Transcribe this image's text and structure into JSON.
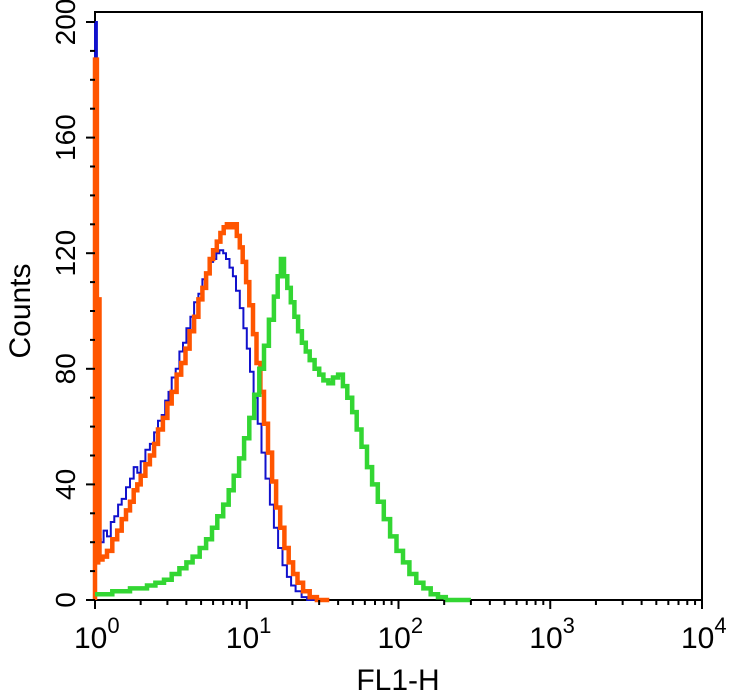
{
  "figure": {
    "background": "#ffffff",
    "axis_color": "#000000"
  },
  "chart_data": {
    "type": "line",
    "subtype": "flow-cytometry-histogram-overlay",
    "title": "",
    "xlabel": "FL1-H",
    "ylabel": "Counts",
    "x_scale": "log10",
    "x_range": [
      1,
      10000
    ],
    "y_range": [
      0,
      200
    ],
    "grid": "off",
    "legend": "none",
    "axis_color": "#000000",
    "x_ticks": [
      {
        "value": 1,
        "base": "10",
        "exp": "0"
      },
      {
        "value": 10,
        "base": "10",
        "exp": "1"
      },
      {
        "value": 100,
        "base": "10",
        "exp": "2"
      },
      {
        "value": 1000,
        "base": "10",
        "exp": "3"
      },
      {
        "value": 10000,
        "base": "10",
        "exp": "4"
      }
    ],
    "x_minor_ticks_per_decade": [
      2,
      3,
      4,
      5,
      6,
      7,
      8,
      9
    ],
    "y_ticks": [
      {
        "value": 0,
        "label": "0"
      },
      {
        "value": 40,
        "label": "40"
      },
      {
        "value": 80,
        "label": "80"
      },
      {
        "value": 120,
        "label": "120"
      },
      {
        "value": 160,
        "label": "160"
      },
      {
        "value": 200,
        "label": "200"
      }
    ],
    "y_minor_step": 10,
    "y_major_step": 40,
    "series": [
      {
        "name": "blue-trace",
        "color": "#1111cc",
        "stroke_width": 2,
        "peak": {
          "x": 7,
          "y": 121
        },
        "points": [
          [
            1.0,
            0
          ],
          [
            1.0,
            200
          ],
          [
            1.03,
            200
          ],
          [
            1.03,
            21
          ],
          [
            1.09,
            20
          ],
          [
            1.14,
            24
          ],
          [
            1.2,
            22
          ],
          [
            1.27,
            27
          ],
          [
            1.34,
            29
          ],
          [
            1.42,
            33
          ],
          [
            1.5,
            35
          ],
          [
            1.6,
            39
          ],
          [
            1.7,
            42
          ],
          [
            1.8,
            46
          ],
          [
            1.9,
            44
          ],
          [
            2.0,
            48
          ],
          [
            2.15,
            52
          ],
          [
            2.3,
            54
          ],
          [
            2.45,
            58
          ],
          [
            2.6,
            62
          ],
          [
            2.75,
            64
          ],
          [
            2.9,
            69
          ],
          [
            3.05,
            72
          ],
          [
            3.2,
            77
          ],
          [
            3.4,
            80
          ],
          [
            3.6,
            86
          ],
          [
            3.8,
            89
          ],
          [
            4.0,
            94
          ],
          [
            4.25,
            98
          ],
          [
            4.5,
            103
          ],
          [
            4.8,
            106
          ],
          [
            5.1,
            111
          ],
          [
            5.4,
            113
          ],
          [
            5.7,
            117
          ],
          [
            6.0,
            118
          ],
          [
            6.3,
            120
          ],
          [
            6.6,
            121
          ],
          [
            7.0,
            120
          ],
          [
            7.3,
            118
          ],
          [
            7.7,
            115
          ],
          [
            8.1,
            112
          ],
          [
            8.5,
            107
          ],
          [
            9.0,
            101
          ],
          [
            9.5,
            94
          ],
          [
            10.0,
            87
          ],
          [
            10.5,
            79
          ],
          [
            11.1,
            70
          ],
          [
            11.8,
            61
          ],
          [
            12.5,
            51
          ],
          [
            13.3,
            42
          ],
          [
            14.2,
            33
          ],
          [
            15.1,
            25
          ],
          [
            16.1,
            18
          ],
          [
            17.2,
            12
          ],
          [
            18.4,
            8
          ],
          [
            19.6,
            5
          ],
          [
            21.0,
            3
          ],
          [
            23.0,
            1
          ],
          [
            25.0,
            0
          ],
          [
            30.0,
            0
          ]
        ]
      },
      {
        "name": "orange-trace",
        "color": "#ff5500",
        "stroke_width": 4.5,
        "peak": {
          "x": 7.6,
          "y": 130
        },
        "points": [
          [
            1.0,
            0
          ],
          [
            1.0,
            187
          ],
          [
            1.03,
            187
          ],
          [
            1.03,
            13
          ],
          [
            1.05,
            13
          ],
          [
            1.05,
            104
          ],
          [
            1.07,
            104
          ],
          [
            1.07,
            14
          ],
          [
            1.12,
            15
          ],
          [
            1.2,
            17
          ],
          [
            1.3,
            21
          ],
          [
            1.4,
            24
          ],
          [
            1.5,
            28
          ],
          [
            1.6,
            31
          ],
          [
            1.7,
            34
          ],
          [
            1.8,
            38
          ],
          [
            1.9,
            40
          ],
          [
            2.0,
            43
          ],
          [
            2.15,
            47
          ],
          [
            2.3,
            50
          ],
          [
            2.45,
            54
          ],
          [
            2.6,
            59
          ],
          [
            2.8,
            63
          ],
          [
            3.0,
            68
          ],
          [
            3.2,
            72
          ],
          [
            3.45,
            78
          ],
          [
            3.7,
            82
          ],
          [
            3.95,
            87
          ],
          [
            4.2,
            93
          ],
          [
            4.5,
            98
          ],
          [
            4.8,
            104
          ],
          [
            5.1,
            108
          ],
          [
            5.4,
            113
          ],
          [
            5.7,
            118
          ],
          [
            6.0,
            121
          ],
          [
            6.35,
            124
          ],
          [
            6.7,
            127
          ],
          [
            7.05,
            129
          ],
          [
            7.4,
            130
          ],
          [
            7.8,
            129
          ],
          [
            8.2,
            130
          ],
          [
            8.6,
            126
          ],
          [
            9.0,
            122
          ],
          [
            9.4,
            117
          ],
          [
            9.9,
            110
          ],
          [
            10.4,
            102
          ],
          [
            11.0,
            92
          ],
          [
            11.6,
            82
          ],
          [
            12.3,
            72
          ],
          [
            13.0,
            61
          ],
          [
            13.8,
            51
          ],
          [
            14.7,
            41
          ],
          [
            15.6,
            32
          ],
          [
            16.6,
            25
          ],
          [
            17.7,
            18
          ],
          [
            18.9,
            13
          ],
          [
            20.2,
            9
          ],
          [
            21.6,
            6
          ],
          [
            23.5,
            3
          ],
          [
            26.0,
            1
          ],
          [
            29.0,
            0
          ],
          [
            35.0,
            0
          ]
        ]
      },
      {
        "name": "green-trace",
        "color": "#33d633",
        "stroke_width": 4.5,
        "peak": {
          "x": 16.8,
          "y": 118
        },
        "points": [
          [
            1.0,
            2
          ],
          [
            1.15,
            2
          ],
          [
            1.3,
            3
          ],
          [
            1.5,
            3
          ],
          [
            1.7,
            4
          ],
          [
            1.95,
            4
          ],
          [
            2.2,
            5
          ],
          [
            2.5,
            6
          ],
          [
            2.85,
            7
          ],
          [
            3.2,
            9
          ],
          [
            3.6,
            11
          ],
          [
            4.0,
            13
          ],
          [
            4.4,
            15
          ],
          [
            4.9,
            18
          ],
          [
            5.4,
            21
          ],
          [
            5.9,
            25
          ],
          [
            6.4,
            29
          ],
          [
            7.0,
            33
          ],
          [
            7.6,
            38
          ],
          [
            8.2,
            43
          ],
          [
            8.9,
            49
          ],
          [
            9.6,
            56
          ],
          [
            10.4,
            63
          ],
          [
            11.2,
            71
          ],
          [
            12.1,
            80
          ],
          [
            13.0,
            88
          ],
          [
            14.0,
            97
          ],
          [
            15.1,
            105
          ],
          [
            16.0,
            112
          ],
          [
            16.8,
            118
          ],
          [
            17.6,
            112
          ],
          [
            18.5,
            108
          ],
          [
            19.5,
            103
          ],
          [
            20.6,
            98
          ],
          [
            21.8,
            93
          ],
          [
            23.1,
            89
          ],
          [
            24.5,
            86
          ],
          [
            26.0,
            83
          ],
          [
            28.0,
            80
          ],
          [
            30.0,
            78
          ],
          [
            32.0,
            76
          ],
          [
            34.5,
            75
          ],
          [
            37.0,
            77
          ],
          [
            40.0,
            78
          ],
          [
            43.0,
            74
          ],
          [
            46.0,
            70
          ],
          [
            49.5,
            65
          ],
          [
            53.0,
            59
          ],
          [
            57.0,
            53
          ],
          [
            62.0,
            46
          ],
          [
            67.0,
            40
          ],
          [
            73.0,
            34
          ],
          [
            80.0,
            28
          ],
          [
            88.0,
            22
          ],
          [
            97.0,
            17
          ],
          [
            107.0,
            13
          ],
          [
            118.0,
            9
          ],
          [
            131.0,
            6
          ],
          [
            146.0,
            4
          ],
          [
            163.0,
            2
          ],
          [
            182.0,
            1
          ],
          [
            205.0,
            0
          ],
          [
            300.0,
            0
          ]
        ]
      }
    ]
  }
}
